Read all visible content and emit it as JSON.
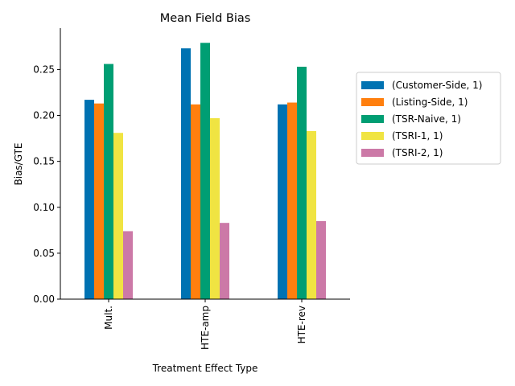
{
  "chart_data": {
    "type": "bar",
    "title": "Mean Field Bias",
    "xlabel": "Treatment Effect Type",
    "ylabel": "Bias/GTE",
    "categories": [
      "Mult.",
      "HTE-amp",
      "HTE-rev"
    ],
    "ylim": [
      0,
      0.295
    ],
    "yticks": [
      0.0,
      0.05,
      0.1,
      0.15,
      0.2,
      0.25
    ],
    "ytick_labels": [
      "0.00",
      "0.05",
      "0.10",
      "0.15",
      "0.20",
      "0.25"
    ],
    "grid": false,
    "legend_position": "right",
    "series": [
      {
        "name": "(Customer-Side, 1)",
        "color": "#0072b2",
        "values": [
          0.217,
          0.273,
          0.212
        ]
      },
      {
        "name": "(Listing-Side, 1)",
        "color": "#ff7f0e",
        "values": [
          0.213,
          0.212,
          0.214
        ]
      },
      {
        "name": "(TSR-Naive, 1)",
        "color": "#009e73",
        "values": [
          0.256,
          0.279,
          0.253
        ]
      },
      {
        "name": "(TSRI-1, 1)",
        "color": "#f0e442",
        "values": [
          0.181,
          0.197,
          0.183
        ]
      },
      {
        "name": "(TSRI-2, 1)",
        "color": "#cc79a7",
        "values": [
          0.074,
          0.083,
          0.085
        ]
      }
    ]
  }
}
